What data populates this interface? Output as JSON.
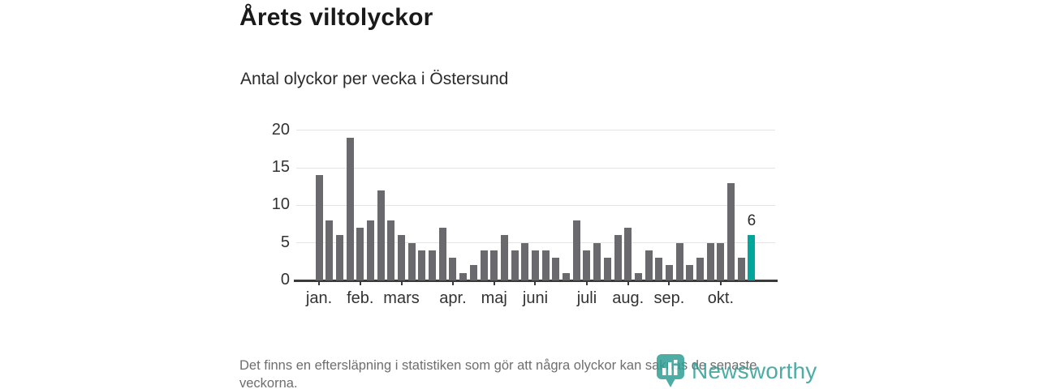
{
  "header": {
    "title": "Årets viltolyckor",
    "subtitle": "Antal olyckor per vecka i Östersund"
  },
  "chart_data": {
    "type": "bar",
    "title": "Årets viltolyckor",
    "subtitle": "Antal olyckor per vecka i Östersund",
    "values": [
      14,
      8,
      6,
      19,
      7,
      8,
      12,
      8,
      6,
      5,
      4,
      4,
      7,
      3,
      1,
      2,
      4,
      4,
      6,
      4,
      5,
      4,
      4,
      3,
      1,
      8,
      4,
      5,
      3,
      6,
      7,
      1,
      4,
      3,
      2,
      5,
      2,
      3,
      5,
      5,
      13,
      3,
      6
    ],
    "highlight_index": 42,
    "highlight_label": "6",
    "y_ticks": [
      0,
      5,
      10,
      15,
      20
    ],
    "ylim": [
      0,
      20
    ],
    "x_ticks": [
      {
        "label": "jan.",
        "index": 0
      },
      {
        "label": "feb.",
        "index": 4
      },
      {
        "label": "mars",
        "index": 8
      },
      {
        "label": "apr.",
        "index": 13
      },
      {
        "label": "maj",
        "index": 17
      },
      {
        "label": "juni",
        "index": 21
      },
      {
        "label": "juli",
        "index": 26
      },
      {
        "label": "aug.",
        "index": 30
      },
      {
        "label": "sep.",
        "index": 34
      },
      {
        "label": "okt.",
        "index": 39
      }
    ],
    "bar_color": "#6a6a6e",
    "highlight_color": "#00a69c",
    "grid": true,
    "legend": false
  },
  "footnote": {
    "text": "Det finns en eftersläpning i statistiken som gör att några olyckor kan saknas de senaste veckorna."
  },
  "logo": {
    "text": "Newsworthy",
    "color": "#2f9f95",
    "icon": "newsworthy-bar-chart-pin-icon"
  }
}
